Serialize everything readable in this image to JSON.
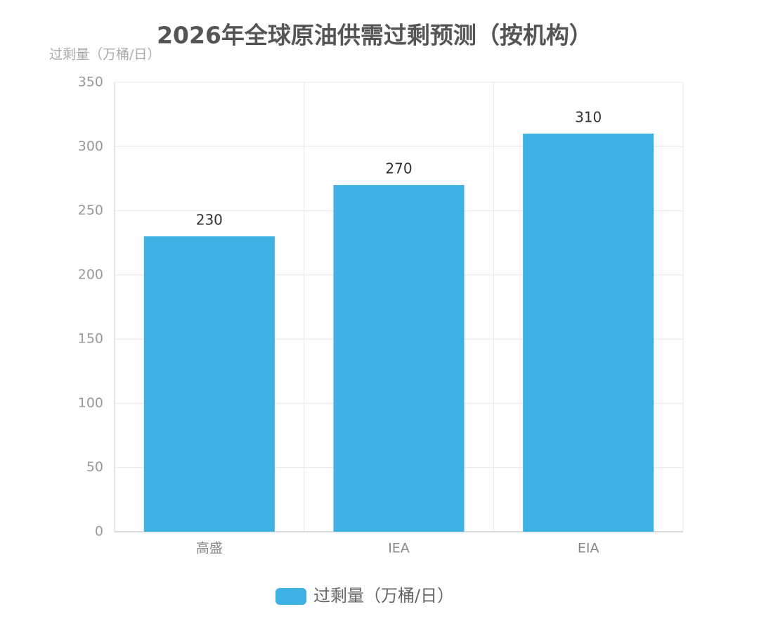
{
  "chart_data": {
    "type": "bar",
    "title": "2026年全球原油供需过剩预测（按机构）",
    "y_label": "过剩量（万桶/日）",
    "categories": [
      "高盛",
      "IEA",
      "EIA"
    ],
    "series": [
      {
        "name": "过剩量（万桶/日）",
        "color": "#3fb1e3",
        "values": [
          230,
          270,
          310
        ]
      }
    ],
    "ylim": [
      0,
      350
    ],
    "yticks": [
      0,
      50,
      100,
      150,
      200,
      250,
      300,
      350
    ],
    "grid": true,
    "legend": "bottom",
    "data_labels": true
  }
}
